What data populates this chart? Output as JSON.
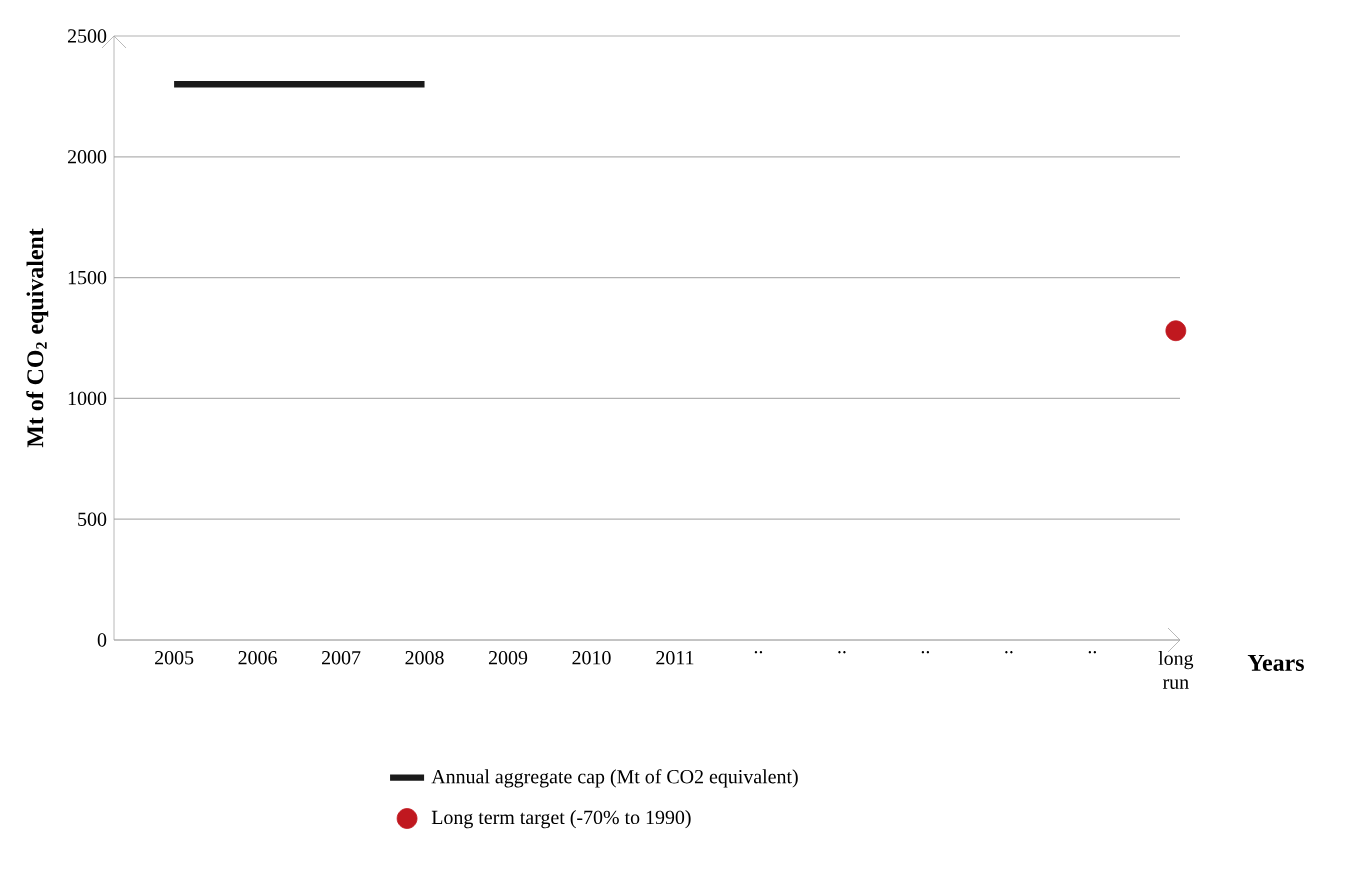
{
  "chart_data": {
    "type": "line",
    "xlabel": "Years",
    "ylabel": "Mt of CO$_{2}$ equivalent",
    "categories": [
      "2005",
      "2006",
      "2007",
      "2008",
      "2009",
      "2010",
      "2011",
      "..",
      "..",
      "..",
      "..",
      "..",
      "long run"
    ],
    "series": [
      {
        "name": "Annual aggregate cap (Mt of CO2 equivalent)",
        "color": "#1a1a1a",
        "line_style": "solid",
        "values": [
          2300,
          2300,
          2300,
          2300,
          null,
          null,
          null,
          null,
          null,
          null,
          null,
          null,
          null
        ]
      },
      {
        "name": "Long term target (-70% to 1990)",
        "type": "scatter",
        "color": "#c0181f",
        "marker": "circle",
        "values": [
          null,
          null,
          null,
          null,
          null,
          null,
          null,
          null,
          null,
          null,
          null,
          null,
          1280
        ]
      }
    ],
    "ylim": [
      0,
      2500
    ],
    "yticks": [
      0,
      500,
      1000,
      1500,
      2000,
      2500
    ],
    "grid": "y",
    "legend": "bottom"
  }
}
